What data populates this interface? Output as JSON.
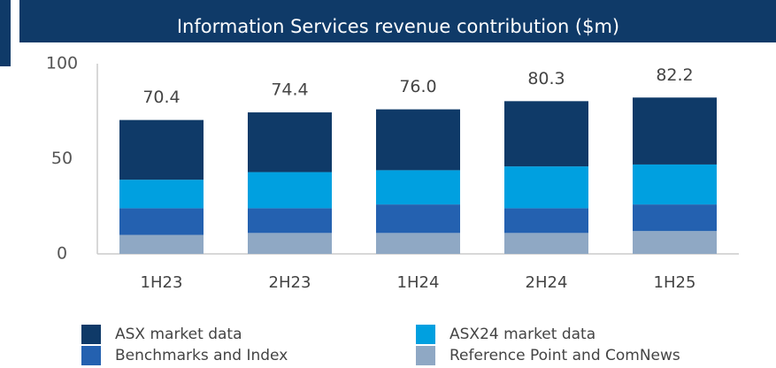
{
  "chart_data": {
    "type": "stacked_bar",
    "title": "Information Services revenue contribution ($m)",
    "categories": [
      "1H23",
      "2H23",
      "1H24",
      "2H24",
      "1H25"
    ],
    "series": [
      {
        "name": "ASX market data",
        "color": "#0f3a68",
        "values": [
          31.4,
          31.4,
          32,
          34.3,
          35.2
        ]
      },
      {
        "name": "ASX24 market data",
        "color": "#00a0e0",
        "values": [
          15,
          19,
          18,
          22,
          21
        ]
      },
      {
        "name": "Benchmarks and Index",
        "color": "#2461b0",
        "values": [
          14,
          13,
          15,
          13,
          14
        ]
      },
      {
        "name": "Reference Point and ComNews",
        "color": "#8fa8c4",
        "values": [
          10,
          11,
          11,
          11,
          12
        ]
      }
    ],
    "totals": [
      70.4,
      74.4,
      76,
      80.3,
      82.2
    ],
    "total_labels": [
      "70.4",
      "74.4",
      "76.0",
      "80.3",
      "82.2"
    ],
    "ylim": [
      0,
      100
    ],
    "yticks": [
      0,
      50,
      100
    ]
  }
}
